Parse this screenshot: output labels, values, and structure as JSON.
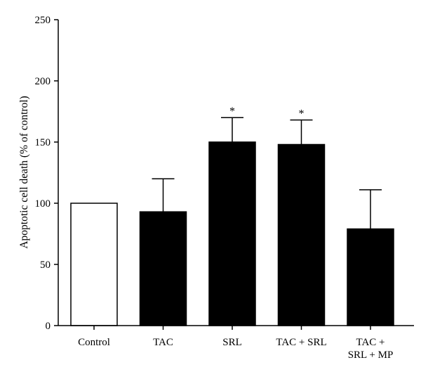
{
  "chart_data": {
    "type": "bar",
    "title": "",
    "xlabel": "",
    "ylabel": "Apoptotic cell death (% of control)",
    "ylim": [
      0,
      250
    ],
    "yticks": [
      0,
      50,
      100,
      150,
      200,
      250
    ],
    "categories": [
      [
        "Control"
      ],
      [
        "TAC"
      ],
      [
        "SRL"
      ],
      [
        "TAC + SRL"
      ],
      [
        "TAC +",
        "SRL + MP"
      ]
    ],
    "values": [
      100,
      93,
      150,
      148,
      79
    ],
    "error_upper": [
      0,
      27,
      20,
      20,
      32
    ],
    "annotations": [
      "",
      "",
      "*",
      "*",
      ""
    ],
    "bar_fill": [
      "#ffffff",
      "#000000",
      "#000000",
      "#000000",
      "#000000"
    ],
    "bar_stroke": "#000000",
    "grid": false,
    "legend": "none"
  }
}
